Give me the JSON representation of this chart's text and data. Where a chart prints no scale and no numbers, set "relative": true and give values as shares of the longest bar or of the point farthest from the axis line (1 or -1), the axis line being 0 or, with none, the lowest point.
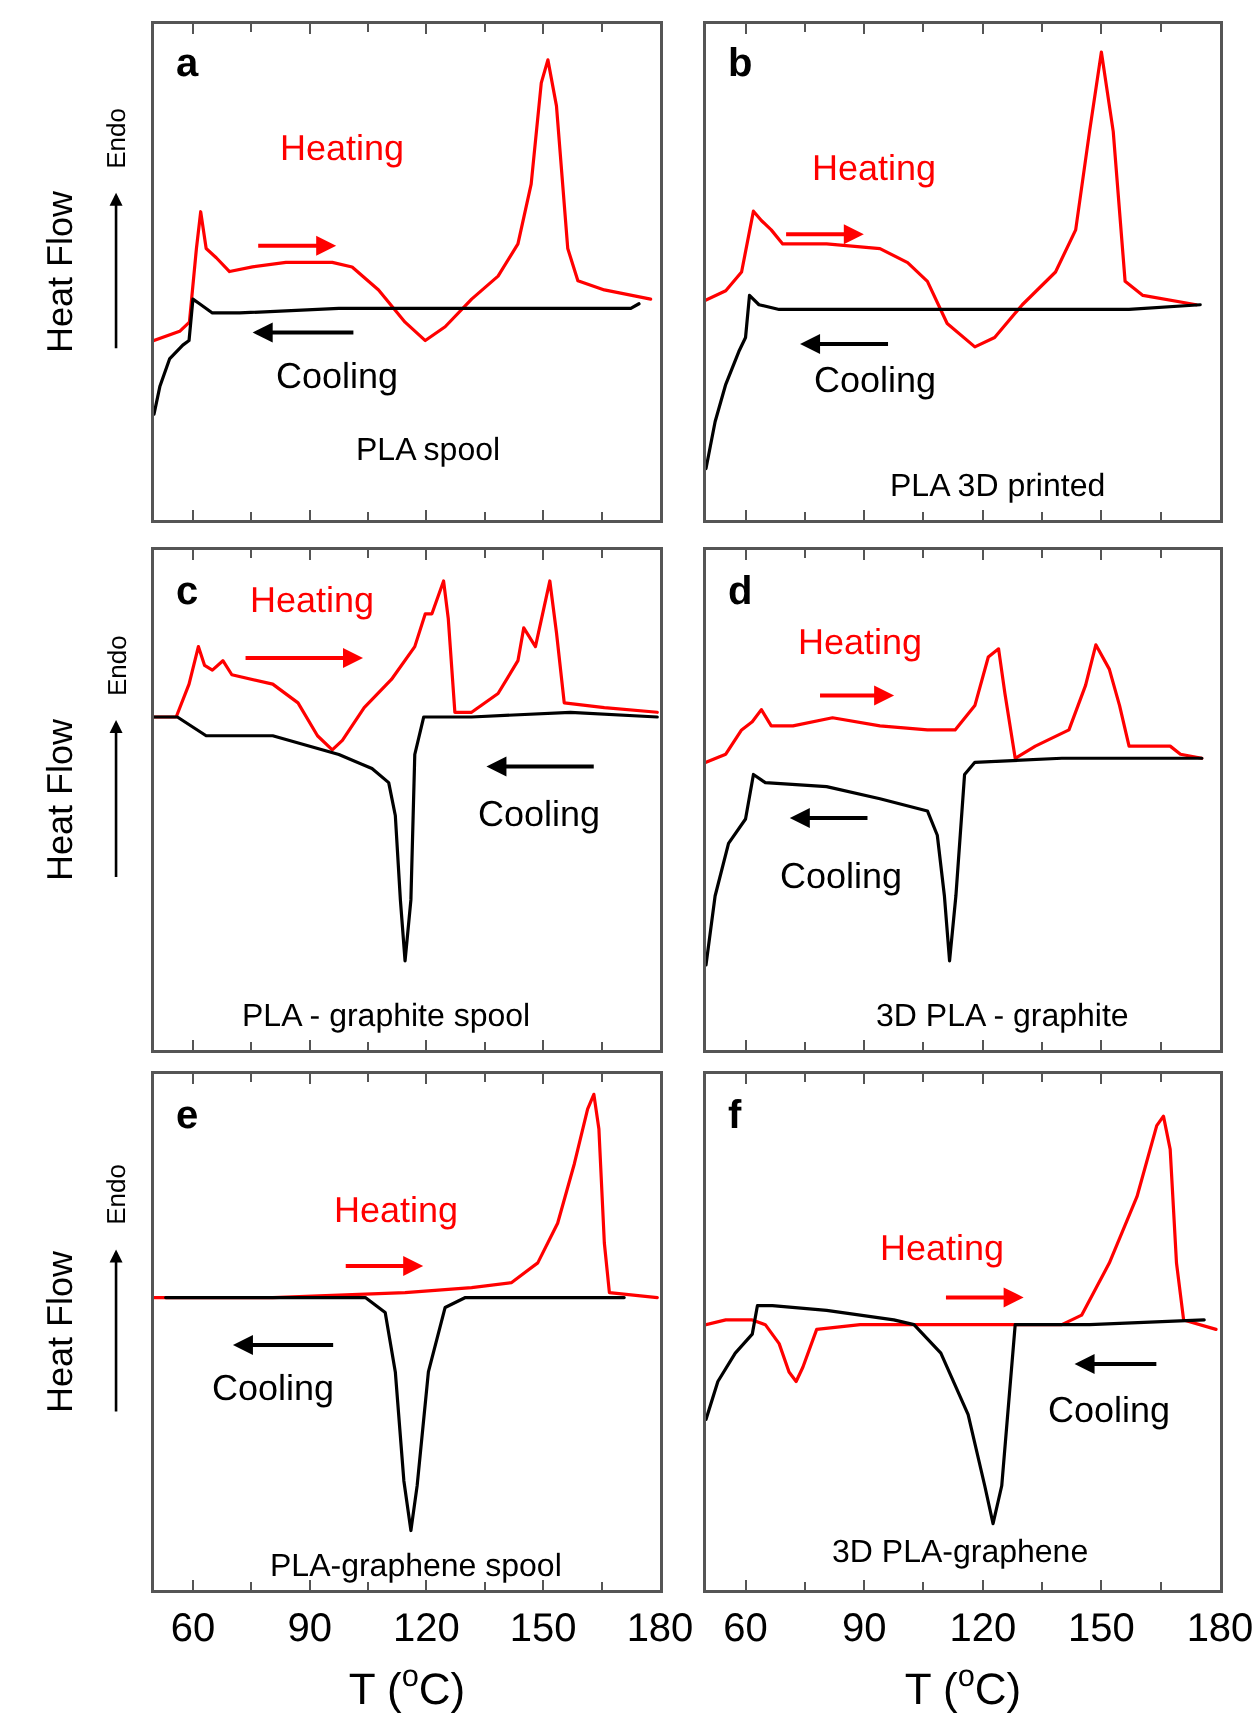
{
  "chart_data": [
    {
      "type": "line",
      "relative": true,
      "ylabel": "Heat Flow",
      "annotations": [
        "a",
        "PLA spool",
        "Endo"
      ],
      "xlim": [
        50,
        180
      ],
      "xticks": [
        60,
        {
          "value": 75,
          "label": null
        },
        90,
        {
          "value": 105,
          "label": null
        },
        120,
        {
          "value": 135,
          "label": null
        },
        150,
        {
          "value": 165,
          "label": null
        },
        180
      ],
      "tick_labels": false,
      "series": [
        {
          "name": "Heating",
          "color": "#ff0000",
          "x": [
            50,
            56.6,
            59.1,
            60.9,
            62,
            63.4,
            66,
            69.4,
            75.3,
            83.9,
            95.8,
            100.9,
            107.7,
            114.5,
            119.7,
            124.8,
            131.6,
            138.4,
            143.5,
            146.9,
            149.5,
            151.2,
            153.4,
            156.3,
            158.9,
            165.7,
            177.6
          ],
          "values": [
            0.39,
            0.41,
            0.43,
            0.59,
            0.67,
            0.59,
            0.57,
            0.54,
            0.55,
            0.56,
            0.56,
            0.55,
            0.5,
            0.43,
            0.39,
            0.42,
            0.48,
            0.53,
            0.6,
            0.73,
            0.95,
            1,
            0.9,
            0.59,
            0.52,
            0.5,
            0.48
          ]
        },
        {
          "name": "Cooling",
          "color": "#000000",
          "x": [
            50,
            51.5,
            54,
            57.4,
            59,
            60,
            61.7,
            65,
            72,
            97.5,
            131.6,
            172.5,
            174.6
          ],
          "values": [
            0.23,
            0.29,
            0.35,
            0.38,
            0.39,
            0.48,
            0.47,
            0.45,
            0.45,
            0.46,
            0.46,
            0.46,
            0.47
          ]
        }
      ]
    },
    {
      "type": "line",
      "relative": true,
      "annotations": [
        "b",
        "PLA 3D printed"
      ],
      "xlim": [
        50,
        180
      ],
      "xticks": [
        60,
        {
          "value": 75,
          "label": null
        },
        90,
        {
          "value": 105,
          "label": null
        },
        120,
        {
          "value": 135,
          "label": null
        },
        150,
        {
          "value": 165,
          "label": null
        },
        180
      ],
      "tick_labels": false,
      "series": [
        {
          "name": "Heating",
          "color": "#ff0000",
          "x": [
            50,
            55,
            59,
            62,
            64,
            66.5,
            69.4,
            80.5,
            94,
            101,
            106,
            111,
            118,
            123,
            130,
            138.4,
            143.5,
            147,
            150,
            153,
            156,
            160.5,
            174
          ],
          "values": [
            0.47,
            0.49,
            0.53,
            0.66,
            0.64,
            0.62,
            0.59,
            0.59,
            0.58,
            0.55,
            0.51,
            0.42,
            0.37,
            0.39,
            0.46,
            0.53,
            0.62,
            0.83,
            1,
            0.83,
            0.51,
            0.48,
            0.46
          ]
        },
        {
          "name": "Cooling",
          "color": "#000000",
          "x": [
            50,
            52.3,
            55,
            58.3,
            60,
            61,
            63.4,
            68.5,
            106,
            157,
            175
          ],
          "values": [
            0.11,
            0.21,
            0.29,
            0.36,
            0.39,
            0.48,
            0.46,
            0.45,
            0.45,
            0.45,
            0.46
          ]
        }
      ]
    },
    {
      "type": "line",
      "relative": true,
      "ylabel": "Heat Flow",
      "annotations": [
        "c",
        "PLA - graphite spool",
        "Endo"
      ],
      "xlim": [
        50,
        180
      ],
      "xticks": [
        60,
        {
          "value": 75,
          "label": null
        },
        90,
        {
          "value": 105,
          "label": null
        },
        120,
        {
          "value": 135,
          "label": null
        },
        150,
        {
          "value": 165,
          "label": null
        },
        180
      ],
      "tick_labels": false,
      "series": [
        {
          "name": "Heating",
          "color": "#ff0000",
          "x": [
            50,
            55.7,
            59,
            61.4,
            63,
            65,
            67.7,
            70,
            80.5,
            87,
            92,
            95.8,
            98.4,
            104,
            111,
            117,
            119.7,
            121.4,
            124.4,
            125.6,
            127.3,
            131.6,
            138.4,
            143.5,
            145,
            148,
            151.7,
            153.4,
            155.4,
            165.7,
            179.3
          ],
          "values": [
            0.71,
            0.71,
            0.78,
            0.86,
            0.82,
            0.81,
            0.83,
            0.8,
            0.78,
            0.74,
            0.67,
            0.64,
            0.66,
            0.73,
            0.79,
            0.86,
            0.93,
            0.93,
            1,
            0.92,
            0.72,
            0.72,
            0.76,
            0.83,
            0.9,
            0.86,
            1,
            0.89,
            0.74,
            0.73,
            0.72
          ]
        },
        {
          "name": "Cooling",
          "color": "#000000",
          "x": [
            50,
            56,
            63.4,
            80.5,
            97.5,
            106,
            110.3,
            112,
            113.3,
            114.5,
            116,
            117,
            119.3,
            131.6,
            157,
            179.3
          ],
          "values": [
            0.71,
            0.71,
            0.67,
            0.67,
            0.63,
            0.6,
            0.57,
            0.5,
            0.32,
            0.19,
            0.32,
            0.63,
            0.71,
            0.71,
            0.72,
            0.71
          ]
        }
      ]
    },
    {
      "type": "line",
      "relative": true,
      "annotations": [
        "d",
        "3D PLA - graphite"
      ],
      "xlim": [
        50,
        180
      ],
      "xticks": [
        60,
        {
          "value": 75,
          "label": null
        },
        90,
        {
          "value": 105,
          "label": null
        },
        120,
        {
          "value": 135,
          "label": null
        },
        150,
        {
          "value": 165,
          "label": null
        },
        180
      ],
      "tick_labels": false,
      "series": [
        {
          "name": "Heating",
          "color": "#ff0000",
          "x": [
            50,
            55,
            59,
            61.7,
            64,
            66.5,
            72,
            82,
            94,
            106,
            113,
            118,
            121.4,
            124,
            125.6,
            128.2,
            133.3,
            141.8,
            146,
            148.6,
            152,
            154.6,
            157,
            167.4,
            170,
            175.4
          ],
          "values": [
            0.71,
            0.73,
            0.79,
            0.81,
            0.84,
            0.8,
            0.8,
            0.82,
            0.8,
            0.79,
            0.79,
            0.85,
            0.97,
            0.99,
            0.88,
            0.72,
            0.75,
            0.79,
            0.9,
            1,
            0.94,
            0.85,
            0.75,
            0.75,
            0.73,
            0.72
          ]
        },
        {
          "name": "Cooling",
          "color": "#000000",
          "x": [
            50,
            52.3,
            55.7,
            60,
            62,
            65,
            80.5,
            94,
            106,
            108.5,
            110.3,
            111.6,
            113.2,
            115.4,
            118,
            140,
            175.4
          ],
          "values": [
            0.21,
            0.38,
            0.51,
            0.57,
            0.68,
            0.66,
            0.65,
            0.62,
            0.59,
            0.53,
            0.38,
            0.22,
            0.38,
            0.68,
            0.71,
            0.72,
            0.72
          ]
        }
      ]
    },
    {
      "type": "line",
      "relative": true,
      "ylabel": "Heat Flow",
      "xlabel": "T ($^{o}$C)",
      "annotations": [
        "e",
        "PLA-graphene spool",
        "Endo"
      ],
      "xlim": [
        50,
        180
      ],
      "xticks": [
        60,
        {
          "value": 75,
          "label": null
        },
        90,
        {
          "value": 105,
          "label": null
        },
        120,
        {
          "value": 135,
          "label": null
        },
        150,
        {
          "value": 165,
          "label": null
        },
        180
      ],
      "tick_labels": "x",
      "series": [
        {
          "name": "Heating",
          "color": "#ff0000",
          "x": [
            50,
            80.5,
            114.5,
            131.6,
            141.8,
            148.6,
            153.7,
            158,
            161.4,
            163,
            164.3,
            165.7,
            167,
            179.3
          ],
          "values": [
            0.59,
            0.59,
            0.6,
            0.61,
            0.62,
            0.66,
            0.74,
            0.86,
            0.97,
            1,
            0.93,
            0.7,
            0.6,
            0.59
          ]
        },
        {
          "name": "Cooling",
          "color": "#000000",
          "x": [
            53,
            80.5,
            104.3,
            109.4,
            112,
            114.2,
            116,
            117.6,
            120.5,
            124.8,
            130,
            148.6,
            170.8
          ],
          "values": [
            0.59,
            0.59,
            0.59,
            0.56,
            0.44,
            0.22,
            0.12,
            0.21,
            0.44,
            0.57,
            0.59,
            0.59,
            0.59
          ]
        }
      ]
    },
    {
      "type": "line",
      "relative": true,
      "xlabel": "T ($^{o}$C)",
      "annotations": [
        "f",
        "3D PLA-graphene"
      ],
      "xlim": [
        50,
        180
      ],
      "xticks": [
        60,
        {
          "value": 75,
          "label": null
        },
        90,
        {
          "value": 105,
          "label": null
        },
        120,
        {
          "value": 135,
          "label": null
        },
        150,
        {
          "value": 165,
          "label": null
        },
        180
      ],
      "tick_labels": "x",
      "series": [
        {
          "name": "Heating",
          "color": "#ff0000",
          "x": [
            50,
            55,
            61.7,
            65,
            68.5,
            71,
            72.8,
            74.5,
            78,
            89,
            123,
            140,
            145,
            152,
            159,
            164,
            165.7,
            167.4,
            169,
            170.8,
            179
          ],
          "values": [
            0.56,
            0.57,
            0.57,
            0.56,
            0.52,
            0.46,
            0.44,
            0.47,
            0.55,
            0.56,
            0.56,
            0.56,
            0.58,
            0.69,
            0.83,
            0.98,
            1,
            0.93,
            0.69,
            0.57,
            0.55
          ]
        },
        {
          "name": "Cooling",
          "color": "#000000",
          "x": [
            50,
            53,
            57.4,
            61.7,
            63,
            66.8,
            80.5,
            97.5,
            102.6,
            109.4,
            116.3,
            120.5,
            122.6,
            124.8,
            128.2,
            130,
            147,
            176
          ],
          "values": [
            0.36,
            0.44,
            0.5,
            0.54,
            0.6,
            0.6,
            0.59,
            0.57,
            0.56,
            0.5,
            0.37,
            0.22,
            0.14,
            0.22,
            0.56,
            0.56,
            0.56,
            0.57
          ]
        }
      ]
    }
  ]
}
